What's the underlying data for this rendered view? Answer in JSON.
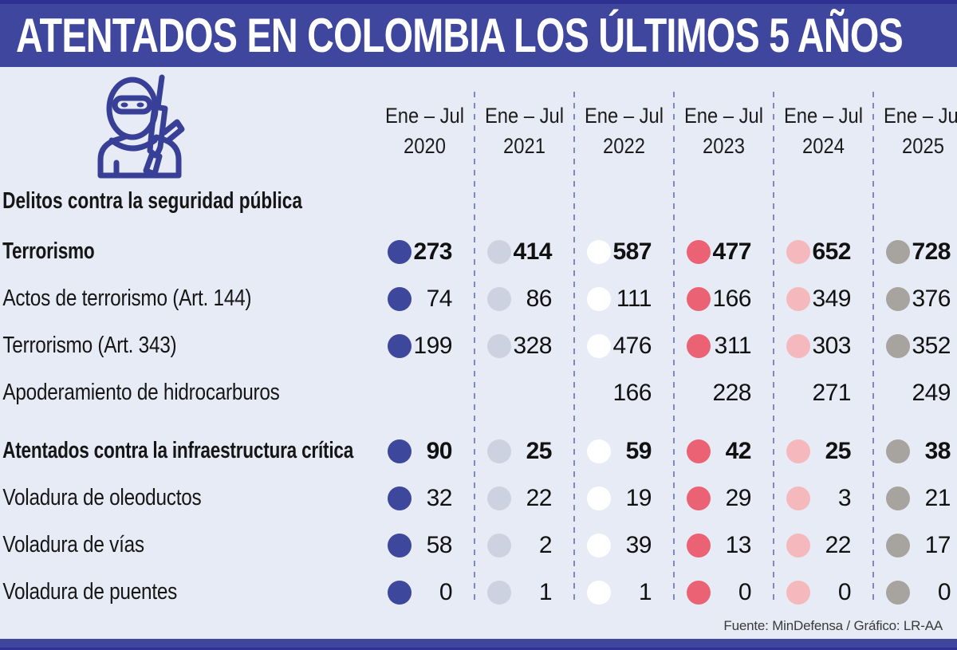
{
  "title": "ATENTADOS EN COLOMBIA LOS ÚLTIMOS 5 AÑOS",
  "banner_color": "#3f469d",
  "icon": {
    "name": "masked-gunman-with-rifle-icon",
    "color": "#383f96"
  },
  "footer": {
    "source_credit": "Fuente: MinDefensa / Gráfico: LR-AA"
  },
  "chart_data": {
    "type": "table",
    "title": "ATENTADOS EN COLOMBIA LOS ÚLTIMOS 5 AÑOS",
    "column_period": "Ene – Jul",
    "years": [
      "2020",
      "2021",
      "2022",
      "2023",
      "2024",
      "2025"
    ],
    "dot_colors": [
      "#3d479c",
      "#ccd2df",
      "#ffffff",
      "#ea6274",
      "#f5b9bd",
      "#a7a39f"
    ],
    "rows": [
      {
        "kind": "section-header",
        "label": "Delitos contra la seguridad pública"
      },
      {
        "kind": "data",
        "label": "Terrorismo",
        "bold": true,
        "dots": true,
        "values": [
          273,
          414,
          587,
          477,
          652,
          728
        ]
      },
      {
        "kind": "data",
        "label": "Actos de terrorismo (Art. 144)",
        "bold": false,
        "dots": true,
        "values": [
          74,
          86,
          111,
          166,
          349,
          376
        ]
      },
      {
        "kind": "data",
        "label": "Terrorismo (Art. 343)",
        "bold": false,
        "dots": true,
        "values": [
          199,
          328,
          476,
          311,
          303,
          352
        ]
      },
      {
        "kind": "data",
        "label": "Apoderamiento de hidrocarburos",
        "bold": false,
        "dots": false,
        "values": [
          null,
          null,
          166,
          228,
          271,
          249
        ]
      },
      {
        "kind": "data",
        "label": "Atentados contra la infraestructura crítica",
        "bold": true,
        "dots": true,
        "section_start": true,
        "values": [
          90,
          25,
          59,
          42,
          25,
          38
        ]
      },
      {
        "kind": "data",
        "label": "Voladura de oleoductos",
        "bold": false,
        "dots": true,
        "values": [
          32,
          22,
          19,
          29,
          3,
          21
        ]
      },
      {
        "kind": "data",
        "label": "Voladura de vías",
        "bold": false,
        "dots": true,
        "values": [
          58,
          2,
          39,
          13,
          22,
          17
        ]
      },
      {
        "kind": "data",
        "label": "Voladura de puentes",
        "bold": false,
        "dots": true,
        "values": [
          0,
          1,
          1,
          0,
          0,
          0
        ]
      }
    ]
  }
}
